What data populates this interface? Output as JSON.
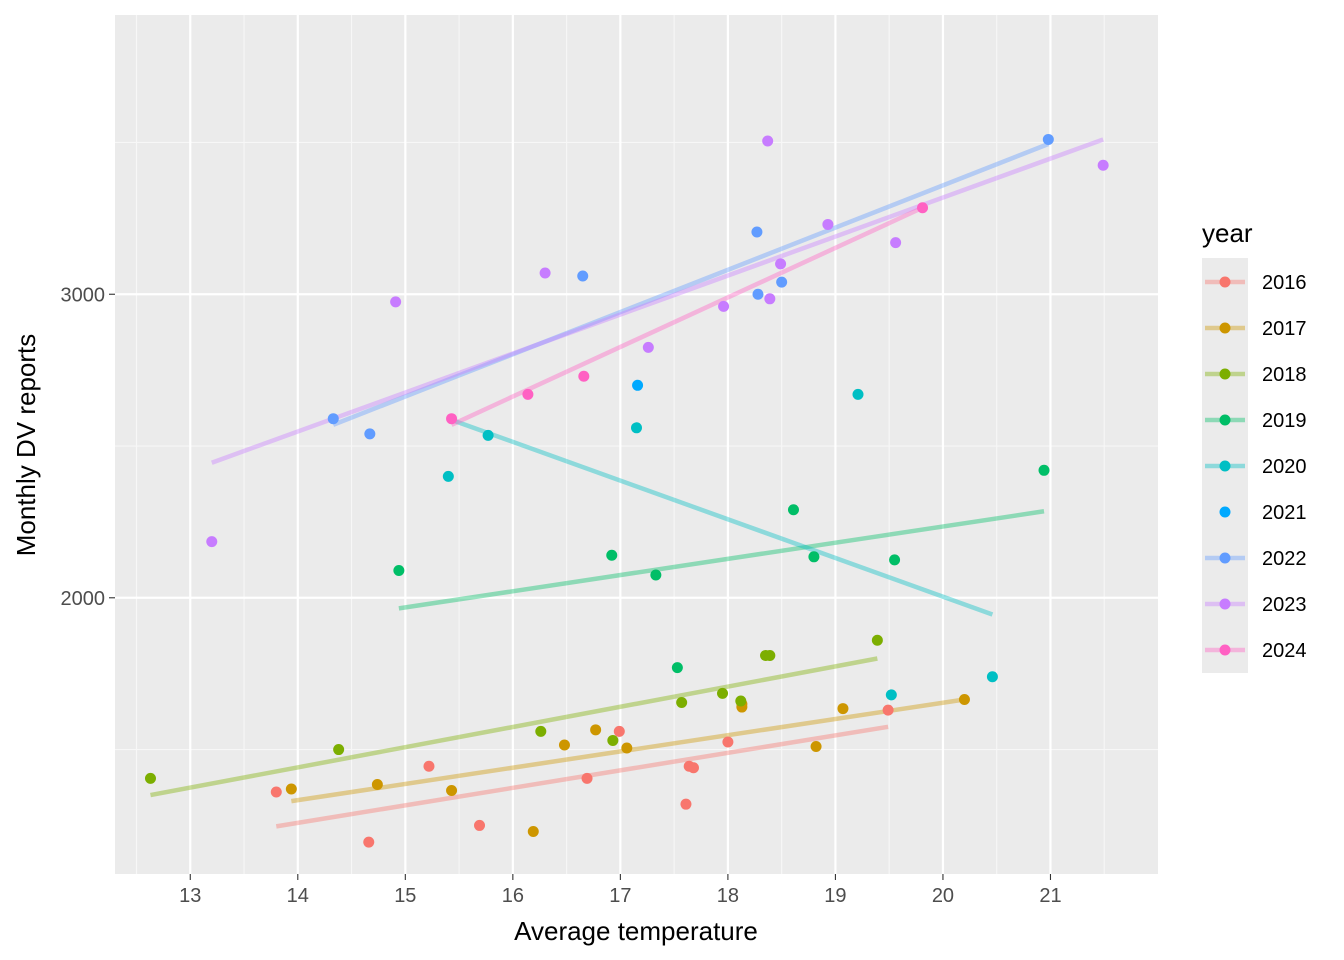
{
  "chart_data": {
    "type": "scatter",
    "xlabel": "Average temperature",
    "ylabel": "Monthly DV reports",
    "xlim": [
      12.3,
      22.0
    ],
    "ylim": [
      1090,
      3920
    ],
    "x_ticks": [
      13,
      14,
      15,
      16,
      17,
      18,
      19,
      20,
      21
    ],
    "x_tick_labels": [
      "13",
      "14",
      "15",
      "16",
      "17",
      "18",
      "19",
      "20",
      "21"
    ],
    "y_ticks": [
      2000,
      3000
    ],
    "y_tick_labels": [
      "2000",
      "3000"
    ],
    "grid": true,
    "legend": {
      "title": "year",
      "position": "right"
    },
    "series": [
      {
        "name": "2016",
        "color": "#F8766D",
        "points": [
          [
            13.8,
            1360
          ],
          [
            14.66,
            1195
          ],
          [
            15.22,
            1445
          ],
          [
            15.69,
            1250
          ],
          [
            16.69,
            1405
          ],
          [
            16.99,
            1560
          ],
          [
            17.61,
            1320
          ],
          [
            17.64,
            1445
          ],
          [
            17.68,
            1440
          ],
          [
            18.0,
            1525
          ],
          [
            19.49,
            1630
          ]
        ],
        "trend": [
          [
            13.8,
            1247
          ],
          [
            19.49,
            1575
          ]
        ]
      },
      {
        "name": "2017",
        "color": "#CD9600",
        "points": [
          [
            13.94,
            1370
          ],
          [
            14.74,
            1385
          ],
          [
            15.43,
            1365
          ],
          [
            16.19,
            1230
          ],
          [
            16.48,
            1515
          ],
          [
            16.77,
            1565
          ],
          [
            17.06,
            1505
          ],
          [
            18.13,
            1640
          ],
          [
            18.13,
            1650
          ],
          [
            18.82,
            1510
          ],
          [
            19.07,
            1635
          ],
          [
            20.2,
            1665
          ]
        ],
        "trend": [
          [
            13.94,
            1330
          ],
          [
            20.2,
            1665
          ]
        ]
      },
      {
        "name": "2018",
        "color": "#7CAE00",
        "points": [
          [
            12.63,
            1405
          ],
          [
            14.38,
            1500
          ],
          [
            16.26,
            1560
          ],
          [
            16.93,
            1530
          ],
          [
            17.57,
            1655
          ],
          [
            17.95,
            1685
          ],
          [
            18.12,
            1660
          ],
          [
            18.35,
            1810
          ],
          [
            18.39,
            1810
          ],
          [
            19.39,
            1860
          ]
        ],
        "trend": [
          [
            12.63,
            1350
          ],
          [
            19.39,
            1800
          ]
        ]
      },
      {
        "name": "2019",
        "color": "#00BE67",
        "points": [
          [
            14.94,
            2090
          ],
          [
            16.92,
            2140
          ],
          [
            17.33,
            2075
          ],
          [
            17.53,
            1770
          ],
          [
            18.61,
            2290
          ],
          [
            18.8,
            2135
          ],
          [
            19.55,
            2125
          ],
          [
            20.94,
            2420
          ]
        ],
        "trend": [
          [
            14.94,
            1965
          ],
          [
            20.94,
            2285
          ]
        ]
      },
      {
        "name": "2020",
        "color": "#00BFC4",
        "points": [
          [
            15.4,
            2400
          ],
          [
            15.77,
            2535
          ],
          [
            17.15,
            2560
          ],
          [
            19.21,
            2670
          ],
          [
            19.52,
            1680
          ],
          [
            20.46,
            1740
          ]
        ],
        "trend": [
          [
            15.4,
            2590
          ],
          [
            20.46,
            1945
          ]
        ]
      },
      {
        "name": "2021",
        "color": "#00A9FF",
        "points": [
          [
            17.16,
            2700
          ]
        ],
        "trend": []
      },
      {
        "name": "2022",
        "color": "#619CFF",
        "points": [
          [
            14.33,
            2590
          ],
          [
            14.67,
            2540
          ],
          [
            16.65,
            3060
          ],
          [
            18.27,
            3205
          ],
          [
            18.28,
            3000
          ],
          [
            18.5,
            3040
          ],
          [
            20.98,
            3510
          ]
        ],
        "trend": [
          [
            14.33,
            2570
          ],
          [
            20.98,
            3495
          ]
        ]
      },
      {
        "name": "2023",
        "color": "#C77CFF",
        "points": [
          [
            13.2,
            2185
          ],
          [
            14.91,
            2975
          ],
          [
            16.3,
            3070
          ],
          [
            17.26,
            2825
          ],
          [
            17.96,
            2960
          ],
          [
            18.37,
            3505
          ],
          [
            18.39,
            2985
          ],
          [
            18.49,
            3100
          ],
          [
            18.93,
            3230
          ],
          [
            19.56,
            3170
          ],
          [
            21.49,
            3425
          ]
        ],
        "trend": [
          [
            13.2,
            2445
          ],
          [
            21.49,
            3510
          ]
        ]
      },
      {
        "name": "2024",
        "color": "#FF61C3",
        "points": [
          [
            15.43,
            2590
          ],
          [
            16.14,
            2670
          ],
          [
            16.66,
            2730
          ],
          [
            19.81,
            3285
          ]
        ],
        "trend": [
          [
            15.43,
            2570
          ],
          [
            19.81,
            3285
          ]
        ]
      }
    ]
  }
}
